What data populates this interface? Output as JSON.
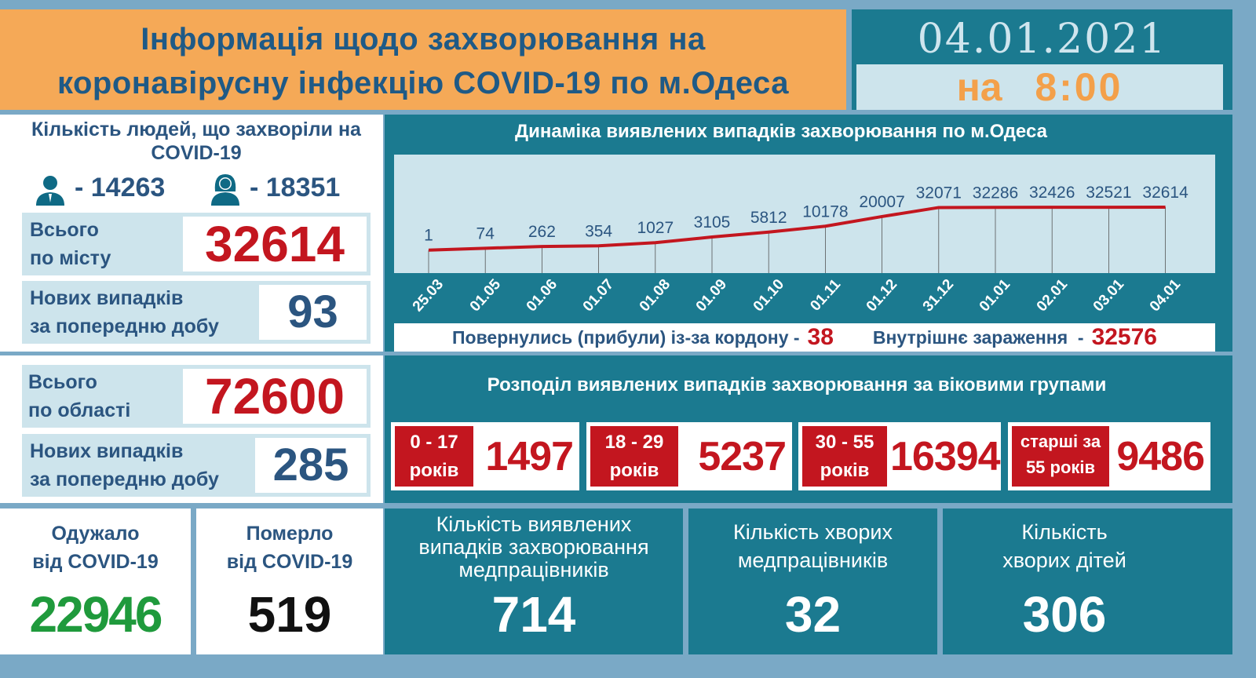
{
  "header": {
    "title_line1": "Інформація щодо захворювання на",
    "title_line2": "коронавірусну інфекцію COVID-19 по м.Одеса"
  },
  "date": {
    "date": "04.01.2021",
    "time_prefix": "на",
    "time": "8:00"
  },
  "city": {
    "title": "Кількість людей, що захворіли на COVID-19",
    "men": "- 14263",
    "women": "- 18351",
    "total_label1": "Всього",
    "total_label2": "по місту",
    "total": "32614",
    "new_label1": "Нових випадків",
    "new_label2": "за попередню добу",
    "new": "93"
  },
  "region": {
    "total_label1": "Всього",
    "total_label2": "по області",
    "total": "72600",
    "new_label1": "Нових випадків",
    "new_label2": "за попередню добу",
    "new": "285"
  },
  "recovered": {
    "label1": "Одужало",
    "label2": "від COVID-19",
    "value": "22946"
  },
  "died": {
    "label1": "Померло",
    "label2": "від COVID-19",
    "value": "519"
  },
  "chart_data": {
    "type": "line",
    "title": "Динаміка виявлених випадків захворювання по м.Одеса",
    "categories": [
      "25.03",
      "01.05",
      "01.06",
      "01.07",
      "01.08",
      "01.09",
      "01.10",
      "01.11",
      "01.12",
      "31.12",
      "01.01",
      "02.01",
      "03.01",
      "04.01"
    ],
    "values": [
      1,
      74,
      262,
      354,
      1027,
      3105,
      5812,
      10178,
      20007,
      32071,
      32286,
      32426,
      32521,
      32614
    ],
    "value_labels": [
      "1",
      "74",
      "262",
      "354",
      "1027",
      "3105",
      "5812",
      "10178",
      "20007",
      "32071",
      "32286",
      "32426",
      "32521",
      "32614"
    ],
    "color": "#c3161f",
    "grid": false
  },
  "sources": {
    "returned_label": "Повернулись (прибули) із-за кордону -",
    "returned": "38",
    "internal_label": "Внутрішнє зараження  -",
    "internal": "32576"
  },
  "ages": {
    "title": "Розподіл виявлених випадків захворювання за віковими групами",
    "groups": [
      {
        "l1": "0 - 17",
        "l2": "років",
        "v": "1497"
      },
      {
        "l1": "18 - 29",
        "l2": "років",
        "v": "5237"
      },
      {
        "l1": "30 - 55",
        "l2": "років",
        "v": "16394"
      },
      {
        "l1": "старші за",
        "l2": "55 років",
        "v": "9486"
      }
    ]
  },
  "medics_cases": {
    "l1": "Кількість виявлених",
    "l2": "випадків захворювання",
    "l3": "медпрацівників",
    "value": "714"
  },
  "medics_sick": {
    "l1": "Кількість хворих",
    "l2": "медпрацівників",
    "value": "32"
  },
  "children": {
    "l1": "Кількість",
    "l2": "хворих дітей",
    "value": "306"
  }
}
